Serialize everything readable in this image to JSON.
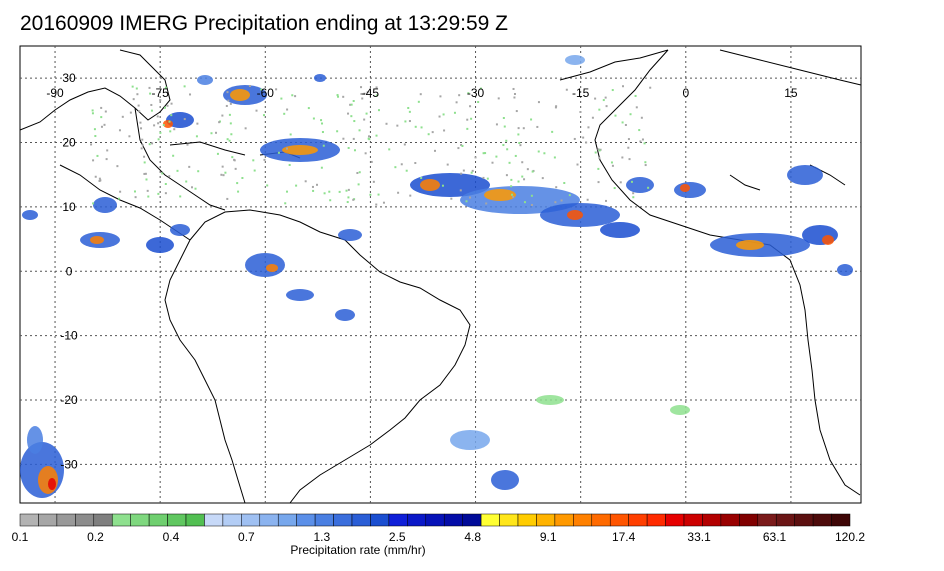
{
  "title": "20160909 IMERG Precipitation ending at 13:29:59 Z",
  "map": {
    "lon_labels": [
      "-90",
      "-75",
      "-60",
      "-45",
      "-30",
      "-15",
      "0",
      "15"
    ],
    "lat_labels": [
      "30",
      "20",
      "10",
      "0",
      "-10",
      "-20",
      "-30"
    ],
    "lon_range": [
      -95,
      25
    ],
    "lat_range": [
      -36,
      35
    ],
    "grid": true,
    "grid_style": "dotted"
  },
  "colorbar": {
    "label": "Precipitation rate (mm/hr)",
    "tick_labels": [
      "0.1",
      "0.2",
      "0.4",
      "0.7",
      "1.3",
      "2.5",
      "4.8",
      "9.1",
      "17.4",
      "33.1",
      "63.1",
      "120.2"
    ],
    "colors": [
      "#b3b3b3",
      "#a6a6a6",
      "#999999",
      "#8c8c8c",
      "#7f7f7f",
      "#8ee08e",
      "#7fd87f",
      "#6fcf6f",
      "#60c760",
      "#52bf52",
      "#c7d9f8",
      "#b3cdf5",
      "#9fc0f2",
      "#8bb3ef",
      "#77a7ec",
      "#5b8fe8",
      "#4a7fe2",
      "#3a6edc",
      "#2a5ed6",
      "#1a4ed0",
      "#0f1fd8",
      "#0a18c8",
      "#0612b8",
      "#030ca8",
      "#000a98",
      "#ffff33",
      "#ffe61a",
      "#ffcc00",
      "#ffb300",
      "#ff9900",
      "#ff8000",
      "#ff6a00",
      "#ff5500",
      "#ff3f00",
      "#ff2a00",
      "#e60000",
      "#cc0000",
      "#b30000",
      "#990000",
      "#800000",
      "#7a1a1a",
      "#6b1515",
      "#5c1010",
      "#4d0b0b",
      "#3e0606"
    ]
  }
}
